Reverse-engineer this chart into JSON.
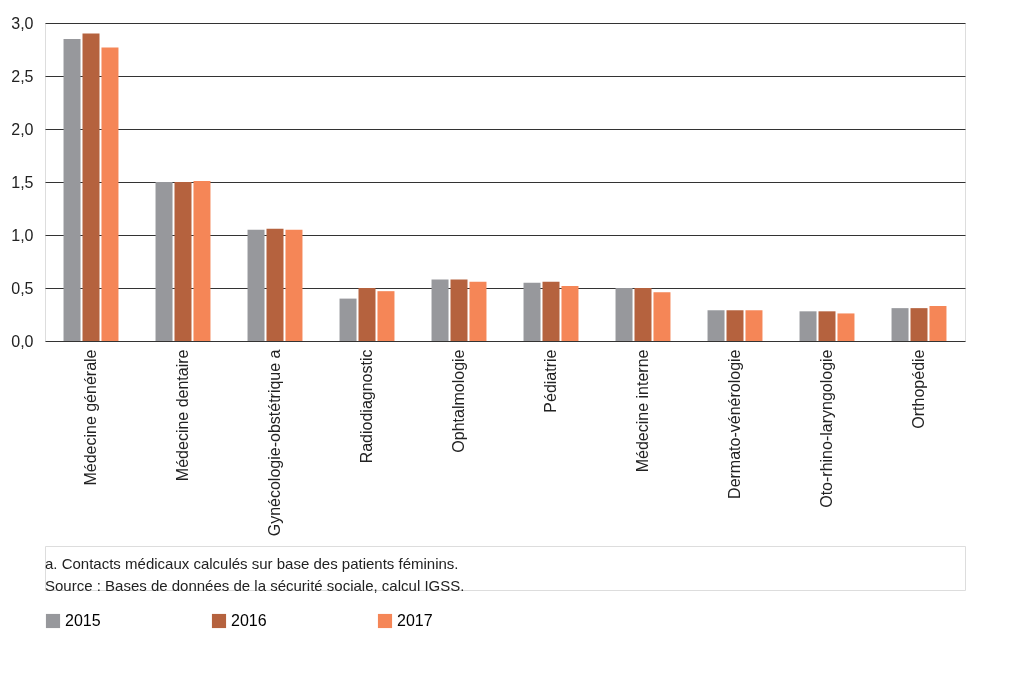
{
  "chart_data": {
    "type": "bar",
    "categories": [
      "Médecine générale",
      "Médecine dentaire",
      "Gynécologie-obstétrique a",
      "Radiodiagnostic",
      "Ophtalmologie",
      "Pédiatrie",
      "Médecine interne",
      "Dermato-vénérologie",
      "Oto-rhino-laryngologie",
      "Orthopédie"
    ],
    "series": [
      {
        "name": "2015",
        "color": "#97989c",
        "values": [
          2.85,
          1.5,
          1.05,
          0.4,
          0.58,
          0.55,
          0.5,
          0.29,
          0.28,
          0.31
        ]
      },
      {
        "name": "2016",
        "color": "#b5623e",
        "values": [
          2.9,
          1.5,
          1.06,
          0.5,
          0.58,
          0.56,
          0.5,
          0.29,
          0.28,
          0.31
        ]
      },
      {
        "name": "2017",
        "color": "#f58657",
        "values": [
          2.77,
          1.51,
          1.05,
          0.47,
          0.56,
          0.52,
          0.46,
          0.29,
          0.26,
          0.33
        ]
      }
    ],
    "ylim": [
      0,
      3
    ],
    "yticks": [
      {
        "value": 0,
        "label": "0,0"
      },
      {
        "value": 0.5,
        "label": "0,5"
      },
      {
        "value": 1,
        "label": "1,0"
      },
      {
        "value": 1.5,
        "label": "1,5"
      },
      {
        "value": 2,
        "label": "2,0"
      },
      {
        "value": 2.5,
        "label": "2,5"
      },
      {
        "value": 3,
        "label": "3,0"
      }
    ],
    "grid": "y",
    "legend": "bottom",
    "annotations": [
      "a. Contacts médicaux calculés sur base des patients féminins.",
      "Source : Bases de données de la sécurité sociale, calcul IGSS."
    ]
  }
}
